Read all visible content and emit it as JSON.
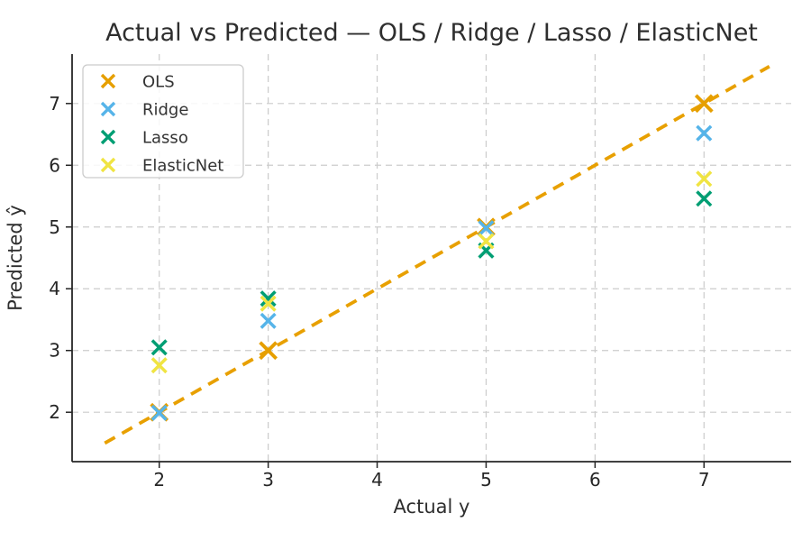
{
  "chart_data": {
    "type": "scatter",
    "title": "Actual vs Predicted — OLS / Ridge / Lasso / ElasticNet",
    "xlabel": "Actual y",
    "ylabel": "Predicted ŷ",
    "xlim": [
      1.2,
      7.8
    ],
    "ylim": [
      1.2,
      7.8
    ],
    "xticks": [
      2,
      3,
      4,
      5,
      6,
      7
    ],
    "yticks": [
      2,
      3,
      4,
      5,
      6,
      7
    ],
    "grid": true,
    "grid_color": "#cbcbcb",
    "background": "#ffffff",
    "spine_color": "#262626",
    "legend_position": "upper left",
    "marker": "x",
    "x": [
      2,
      3,
      5,
      7
    ],
    "series": [
      {
        "name": "OLS",
        "color": "#E69F00",
        "values": [
          2.0,
          3.0,
          5.0,
          7.0
        ]
      },
      {
        "name": "Ridge",
        "color": "#56B4E9",
        "values": [
          1.99,
          3.48,
          4.98,
          6.52
        ]
      },
      {
        "name": "Lasso",
        "color": "#009E73",
        "values": [
          3.05,
          3.84,
          4.62,
          5.46
        ]
      },
      {
        "name": "ElasticNet",
        "color": "#F0E442",
        "values": [
          2.76,
          3.76,
          4.77,
          5.78
        ]
      }
    ],
    "identity_line": {
      "from": 1.5,
      "to": 7.6,
      "color": "#E8A000",
      "style": "dashed"
    }
  }
}
